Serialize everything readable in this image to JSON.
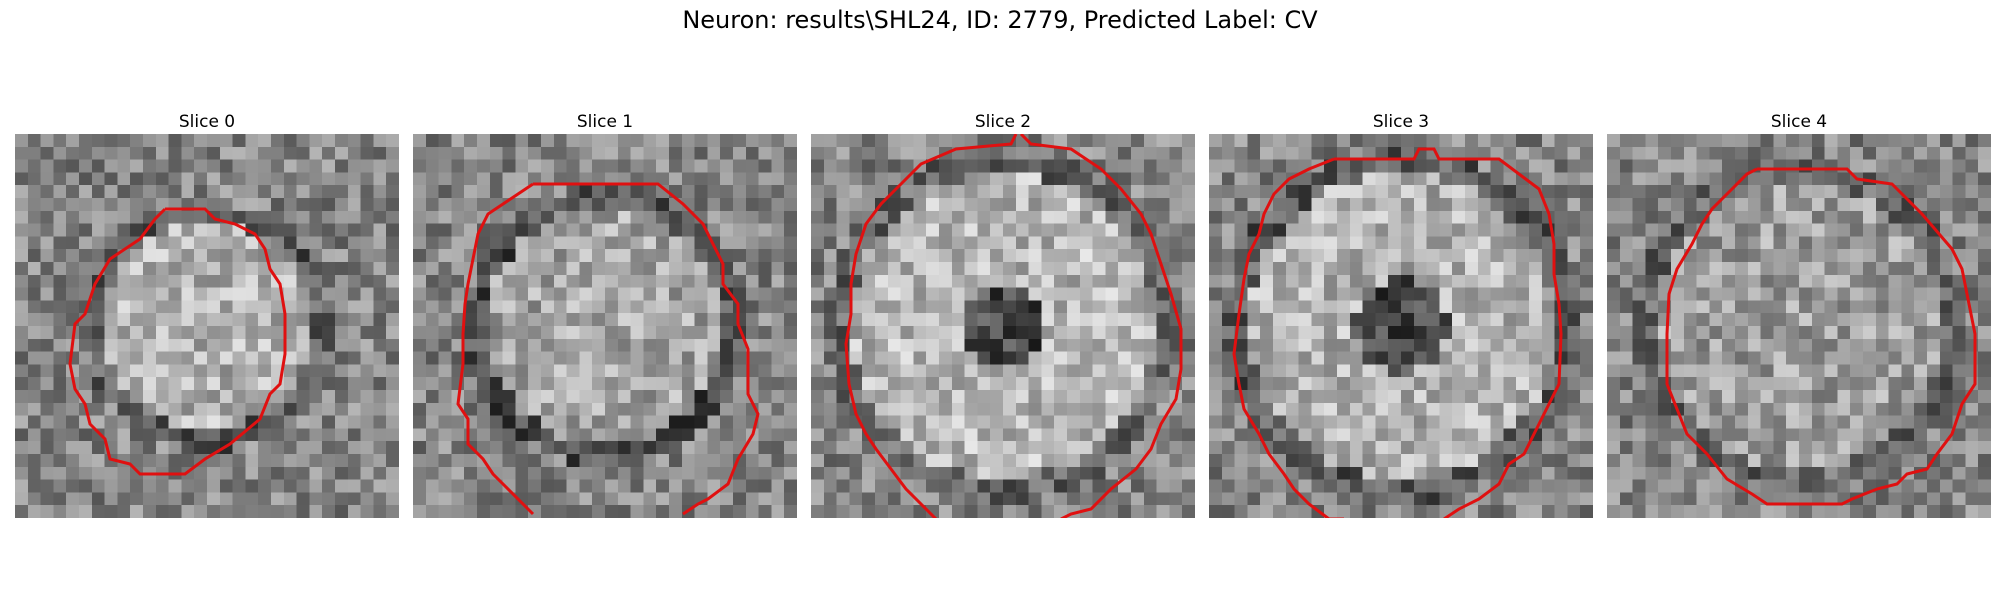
{
  "figure": {
    "title": "Neuron: results\\SHL24, ID: 2779, Predicted Label: CV"
  },
  "panels": [
    {
      "title": "Slice 0"
    },
    {
      "title": "Slice 1"
    },
    {
      "title": "Slice 2"
    },
    {
      "title": "Slice 3"
    },
    {
      "title": "Slice 4"
    }
  ],
  "colors": {
    "contour": "#e01010",
    "background": "#ffffff"
  }
}
